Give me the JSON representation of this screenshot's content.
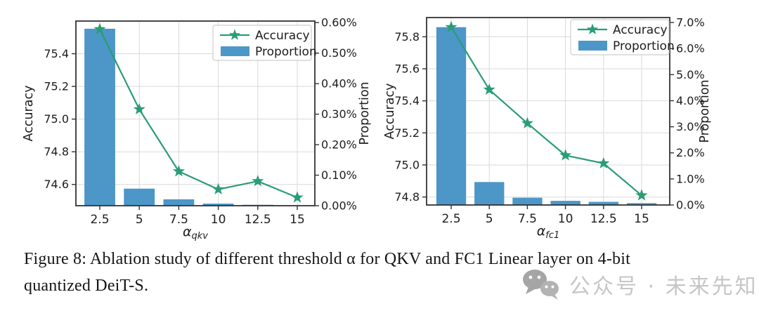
{
  "caption": {
    "line1": "Figure 8: Ablation study of different threshold α for QKV and FC1 Linear layer on 4-bit",
    "line2": "quantized DeiT-S."
  },
  "watermark": {
    "icon": "wechat-icon",
    "text": "公众号 · 未来先知",
    "text_color": "#c6c6c6",
    "icon_color": "#a5a5a5"
  },
  "colors": {
    "accuracy_line": "#2a9d74",
    "proportion_bar": "#4d96c8",
    "grid": "#d9d9d9",
    "spine": "#333333",
    "text": "#1d1d1d",
    "legend_border": "#cccccc"
  },
  "chart_data": [
    {
      "type": "bar",
      "subtype": "dual-axis bar+line",
      "categories": [
        "2.5",
        "5",
        "7.5",
        "10",
        "12.5",
        "15"
      ],
      "xlabel_base": "α",
      "xlabel_sub": "qkv",
      "ylabel_left": "Accuracy",
      "ylabel_right": "Proportion",
      "ylim_left": [
        74.47,
        75.6
      ],
      "yticks_left": [
        "74.6",
        "74.8",
        "75.0",
        "75.2",
        "75.4"
      ],
      "ylim_right": [
        0,
        0.605
      ],
      "yticks_right": [
        "0.00%",
        "0.10%",
        "0.20%",
        "0.30%",
        "0.40%",
        "0.50%",
        "0.60%"
      ],
      "legend": [
        "Accuracy",
        "Proportion"
      ],
      "legend_position": "upper right",
      "grid": true,
      "series": [
        {
          "name": "Accuracy",
          "type": "line",
          "axis": "left",
          "marker": "star",
          "values": [
            75.55,
            75.06,
            74.68,
            74.57,
            74.62,
            74.52
          ]
        },
        {
          "name": "Proportion",
          "type": "bar",
          "axis": "right",
          "values": [
            0.58,
            0.056,
            0.021,
            0.007,
            0.003,
            0.001
          ]
        }
      ]
    },
    {
      "type": "bar",
      "subtype": "dual-axis bar+line",
      "categories": [
        "2.5",
        "5",
        "7.5",
        "10",
        "12.5",
        "15"
      ],
      "xlabel_base": "α",
      "xlabel_sub": "fc1",
      "ylabel_left": "Accuracy",
      "ylabel_right": "Proportion",
      "ylim_left": [
        74.75,
        75.92
      ],
      "yticks_left": [
        "74.8",
        "75.0",
        "75.2",
        "75.4",
        "75.6",
        "75.8"
      ],
      "ylim_right": [
        0,
        7.19
      ],
      "yticks_right": [
        "0.0%",
        "1.0%",
        "2.0%",
        "3.0%",
        "4.0%",
        "5.0%",
        "6.0%",
        "7.0%"
      ],
      "legend": [
        "Accuracy",
        "Proportion"
      ],
      "legend_position": "upper right",
      "grid": true,
      "series": [
        {
          "name": "Accuracy",
          "type": "line",
          "axis": "left",
          "marker": "star",
          "values": [
            75.86,
            75.47,
            75.26,
            75.06,
            75.01,
            74.81
          ]
        },
        {
          "name": "Proportion",
          "type": "bar",
          "axis": "right",
          "values": [
            6.82,
            0.88,
            0.28,
            0.16,
            0.12,
            0.07
          ]
        }
      ]
    }
  ]
}
